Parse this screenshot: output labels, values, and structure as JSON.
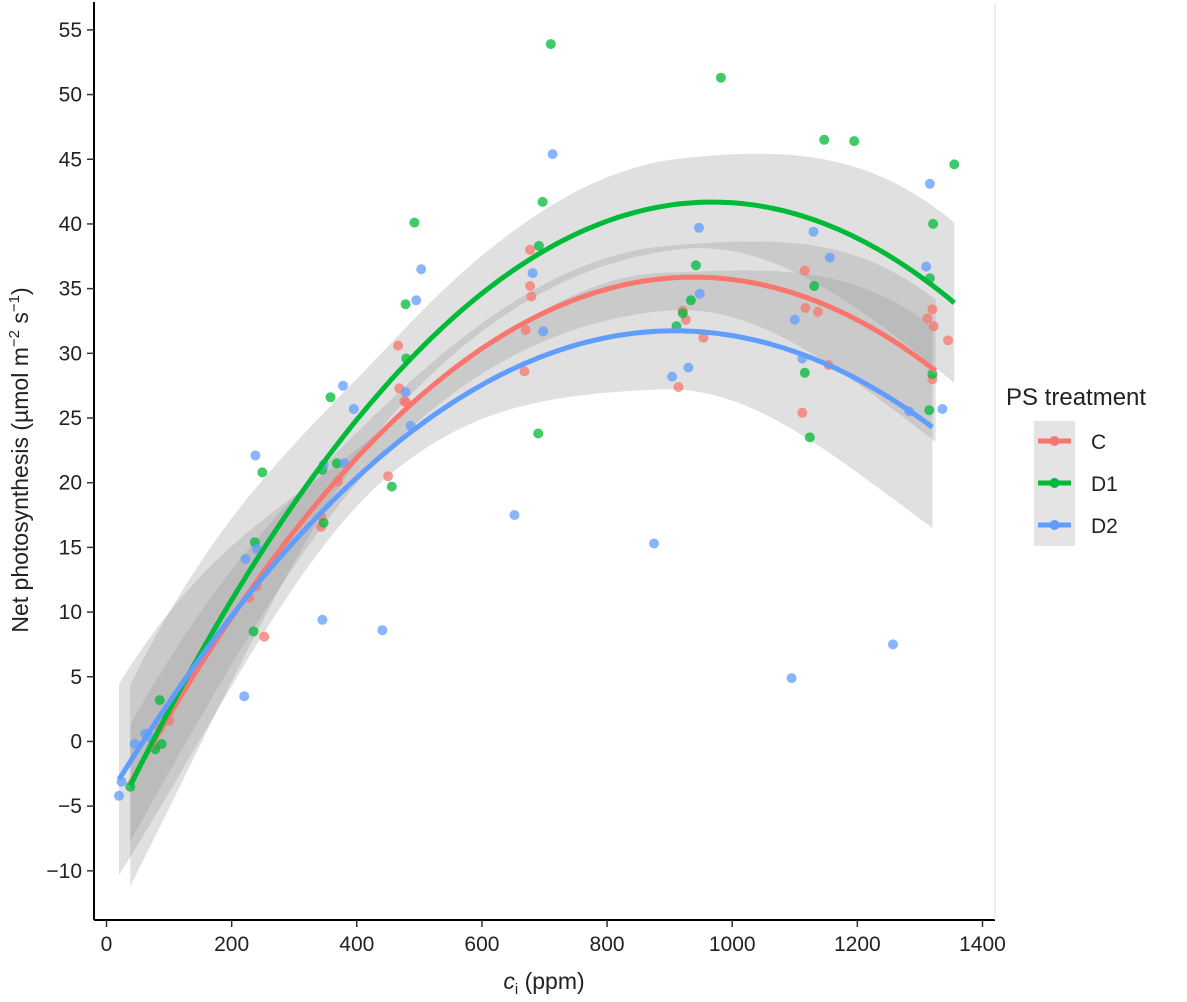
{
  "chart_data": {
    "type": "scatter",
    "title": "",
    "xlabel": {
      "main": "c",
      "sub": "i",
      "rest": " (ppm)"
    },
    "ylabel": {
      "a": "Net photosynthesis (µmol  m",
      "sup1": "−2",
      "b": " s",
      "sup2": "−1",
      "c": ")"
    },
    "xlim": [
      -20,
      1420
    ],
    "ylim": [
      -13.8,
      57
    ],
    "x_ticks": [
      0,
      200,
      400,
      600,
      800,
      1000,
      1200,
      1400
    ],
    "x_tick_labels": [
      "0",
      "200",
      "400",
      "600",
      "800",
      "1000",
      "1200",
      "1400"
    ],
    "y_ticks": [
      -10,
      -5,
      0,
      5,
      10,
      15,
      20,
      25,
      30,
      35,
      40,
      45,
      50,
      55
    ],
    "y_tick_labels": [
      "−10",
      "−5",
      "0",
      "5",
      "10",
      "15",
      "20",
      "25",
      "30",
      "35",
      "40",
      "45",
      "50",
      "55"
    ],
    "grid": false,
    "legend": {
      "title": "PS treatment",
      "position": "right"
    },
    "series": [
      {
        "name": "C",
        "color": "#F8766D",
        "points": [
          [
            85,
            1.0
          ],
          [
            100,
            1.6
          ],
          [
            75,
            -0.3
          ],
          [
            228,
            11.1
          ],
          [
            252,
            8.1
          ],
          [
            240,
            12.0
          ],
          [
            343,
            17.4
          ],
          [
            343,
            16.6
          ],
          [
            370,
            20.1
          ],
          [
            450,
            20.5
          ],
          [
            466,
            30.6
          ],
          [
            468,
            27.3
          ],
          [
            476,
            26.3
          ],
          [
            479,
            26.2
          ],
          [
            668,
            28.6
          ],
          [
            670,
            31.8
          ],
          [
            677,
            38.0
          ],
          [
            677,
            35.2
          ],
          [
            679,
            34.4
          ],
          [
            914,
            27.4
          ],
          [
            921,
            33.3
          ],
          [
            926,
            32.6
          ],
          [
            954,
            31.2
          ],
          [
            1112,
            25.4
          ],
          [
            1116,
            36.4
          ],
          [
            1117,
            33.5
          ],
          [
            1137,
            33.2
          ],
          [
            1154,
            29.1
          ],
          [
            1312,
            32.7
          ],
          [
            1320,
            33.4
          ],
          [
            1320,
            28.0
          ],
          [
            1322,
            32.1
          ],
          [
            1345,
            31.0
          ]
        ],
        "fit": {
          "x_range": [
            38,
            1325
          ],
          "coef": [
            -6.5807,
            0.090545,
            -4.8263e-05
          ],
          "se_half": [
            4.5,
            1.8,
            2.5,
            5.5
          ]
        }
      },
      {
        "name": "D1",
        "color": "#00BA38",
        "points": [
          [
            38,
            -3.5
          ],
          [
            78,
            -0.6
          ],
          [
            85,
            3.2
          ],
          [
            88,
            -0.2
          ],
          [
            235,
            8.5
          ],
          [
            237,
            15.4
          ],
          [
            249,
            20.8
          ],
          [
            345,
            21.0
          ],
          [
            347,
            16.9
          ],
          [
            358,
            26.6
          ],
          [
            368,
            21.5
          ],
          [
            456,
            19.7
          ],
          [
            478,
            33.8
          ],
          [
            479,
            29.6
          ],
          [
            492,
            40.1
          ],
          [
            690,
            23.8
          ],
          [
            691,
            38.3
          ],
          [
            697,
            41.7
          ],
          [
            710,
            53.9
          ],
          [
            911,
            32.1
          ],
          [
            921,
            33.1
          ],
          [
            934,
            34.1
          ],
          [
            942,
            36.8
          ],
          [
            982,
            51.3
          ],
          [
            1116,
            28.5
          ],
          [
            1124,
            23.5
          ],
          [
            1131,
            35.2
          ],
          [
            1147,
            46.5
          ],
          [
            1195,
            46.4
          ],
          [
            1315,
            25.6
          ],
          [
            1316,
            35.8
          ],
          [
            1320,
            28.4
          ],
          [
            1321,
            40.0
          ],
          [
            1355,
            44.6
          ]
        ],
        "fit": {
          "x_range": [
            38,
            1355
          ],
          "coef": [
            -7.1638,
            0.10091,
            -5.2106e-05
          ],
          "se_half": [
            7.8,
            2.8,
            3.5,
            6.2
          ]
        }
      },
      {
        "name": "D2",
        "color": "#619CFF",
        "points": [
          [
            20,
            -4.2
          ],
          [
            24,
            -3.1
          ],
          [
            45,
            -0.2
          ],
          [
            62,
            0.6
          ],
          [
            70,
            0.3
          ],
          [
            220,
            3.5
          ],
          [
            222,
            14.1
          ],
          [
            238,
            22.1
          ],
          [
            240,
            14.9
          ],
          [
            345,
            9.4
          ],
          [
            347,
            21.4
          ],
          [
            378,
            27.5
          ],
          [
            380,
            21.5
          ],
          [
            395,
            25.7
          ],
          [
            441,
            8.6
          ],
          [
            478,
            27.0
          ],
          [
            486,
            24.4
          ],
          [
            495,
            34.1
          ],
          [
            503,
            36.5
          ],
          [
            652,
            17.5
          ],
          [
            681,
            36.2
          ],
          [
            698,
            31.7
          ],
          [
            713,
            45.4
          ],
          [
            875,
            15.3
          ],
          [
            904,
            28.2
          ],
          [
            930,
            28.9
          ],
          [
            947,
            39.7
          ],
          [
            948,
            34.6
          ],
          [
            1095,
            4.9
          ],
          [
            1100,
            32.6
          ],
          [
            1112,
            29.6
          ],
          [
            1130,
            39.4
          ],
          [
            1156,
            37.4
          ],
          [
            1257,
            7.5
          ],
          [
            1283,
            25.5
          ],
          [
            1310,
            36.7
          ],
          [
            1316,
            43.1
          ],
          [
            1336,
            25.7
          ]
        ],
        "fit": {
          "x_range": [
            20,
            1320
          ],
          "coef": [
            -4.5195,
            0.079834,
            -4.3946e-05
          ],
          "se_half": [
            7.4,
            2.0,
            4.5,
            7.8
          ]
        }
      }
    ]
  }
}
